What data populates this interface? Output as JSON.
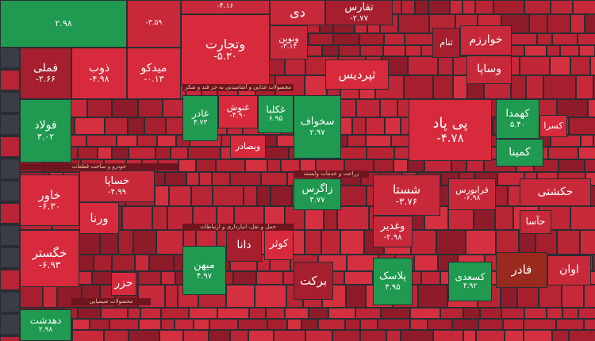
{
  "tiles": [
    {
      "name": null,
      "change": "۲.۹۸"
    },
    {
      "name": null,
      "change": "-۳.۵۹"
    },
    {
      "name": null,
      "change": "-۴.۱۶"
    },
    {
      "name": "دی",
      "change": null
    },
    {
      "name": "تفارس",
      "change": "-۲.۷۷"
    },
    {
      "name": "فملی",
      "change": "-۲.۶۶"
    },
    {
      "name": "ذوب",
      "change": "-۴.۹۸"
    },
    {
      "name": "میدکو",
      "change": "-۰.۱۳"
    },
    {
      "name": "وتجارت",
      "change": "-۵.۳۰"
    },
    {
      "name": "ونوین",
      "change": "-۳.۱۴"
    },
    {
      "name": "ثپردیس",
      "change": null
    },
    {
      "name": "خوارزم",
      "change": null
    },
    {
      "name": "وساپا",
      "change": null
    },
    {
      "name": "فولاد",
      "change": "۳.۰۲"
    },
    {
      "name": "غادر",
      "change": "۴.۷۳"
    },
    {
      "name": "غنوش",
      "change": "-۴.۹۰"
    },
    {
      "name": "غکلبا",
      "change": "۶.۹۵"
    },
    {
      "name": "سخواف",
      "change": "۲.۹۷"
    },
    {
      "name": "پی پاد",
      "change": "-۴.۷۸"
    },
    {
      "name": "کهمدا",
      "change": "۵.۴۰"
    },
    {
      "name": "کسرا",
      "change": null
    },
    {
      "name": "کمینا",
      "change": null
    },
    {
      "name": "خساپا",
      "change": "-۴.۹۹"
    },
    {
      "name": "خاور",
      "change": "-۶.۳۰"
    },
    {
      "name": "ورنا",
      "change": null
    },
    {
      "name": "خگستر",
      "change": "-۶.۹۳"
    },
    {
      "name": "زاگرس",
      "change": "۴.۷۷"
    },
    {
      "name": "شستا",
      "change": "-۳.۷۶"
    },
    {
      "name": "وغدیر",
      "change": "-۲.۹۸"
    },
    {
      "name": "فرابورس",
      "change": "-۶.۹۸"
    },
    {
      "name": "حکشتی",
      "change": null
    },
    {
      "name": "میهن",
      "change": "۴.۹۷"
    },
    {
      "name": "دانا",
      "change": null
    },
    {
      "name": "کوثر",
      "change": null
    },
    {
      "name": "برکت",
      "change": null
    },
    {
      "name": "پلاسک",
      "change": "۴.۹۵"
    },
    {
      "name": "کسعدی",
      "change": "۴.۹۲"
    },
    {
      "name": "فادر",
      "change": null
    },
    {
      "name": "اوان",
      "change": null
    },
    {
      "name": "دهدشت",
      "change": "۲.۹۸"
    },
    {
      "name": "حزر",
      "change": null
    },
    {
      "name": "حآسا",
      "change": null
    },
    {
      "name": "ثنام",
      "change": null
    },
    {
      "name": "وبصادر",
      "change": null
    }
  ],
  "sectors": [
    "خودرو و ساخت قطعات",
    "محصولات شیمیایی",
    "زراعت و خدمات وابسته",
    "حمل و نقل، انبارداری و ارتباطات",
    "محصولات غذایی و آشامیدنی به جز قند و شکر"
  ]
}
